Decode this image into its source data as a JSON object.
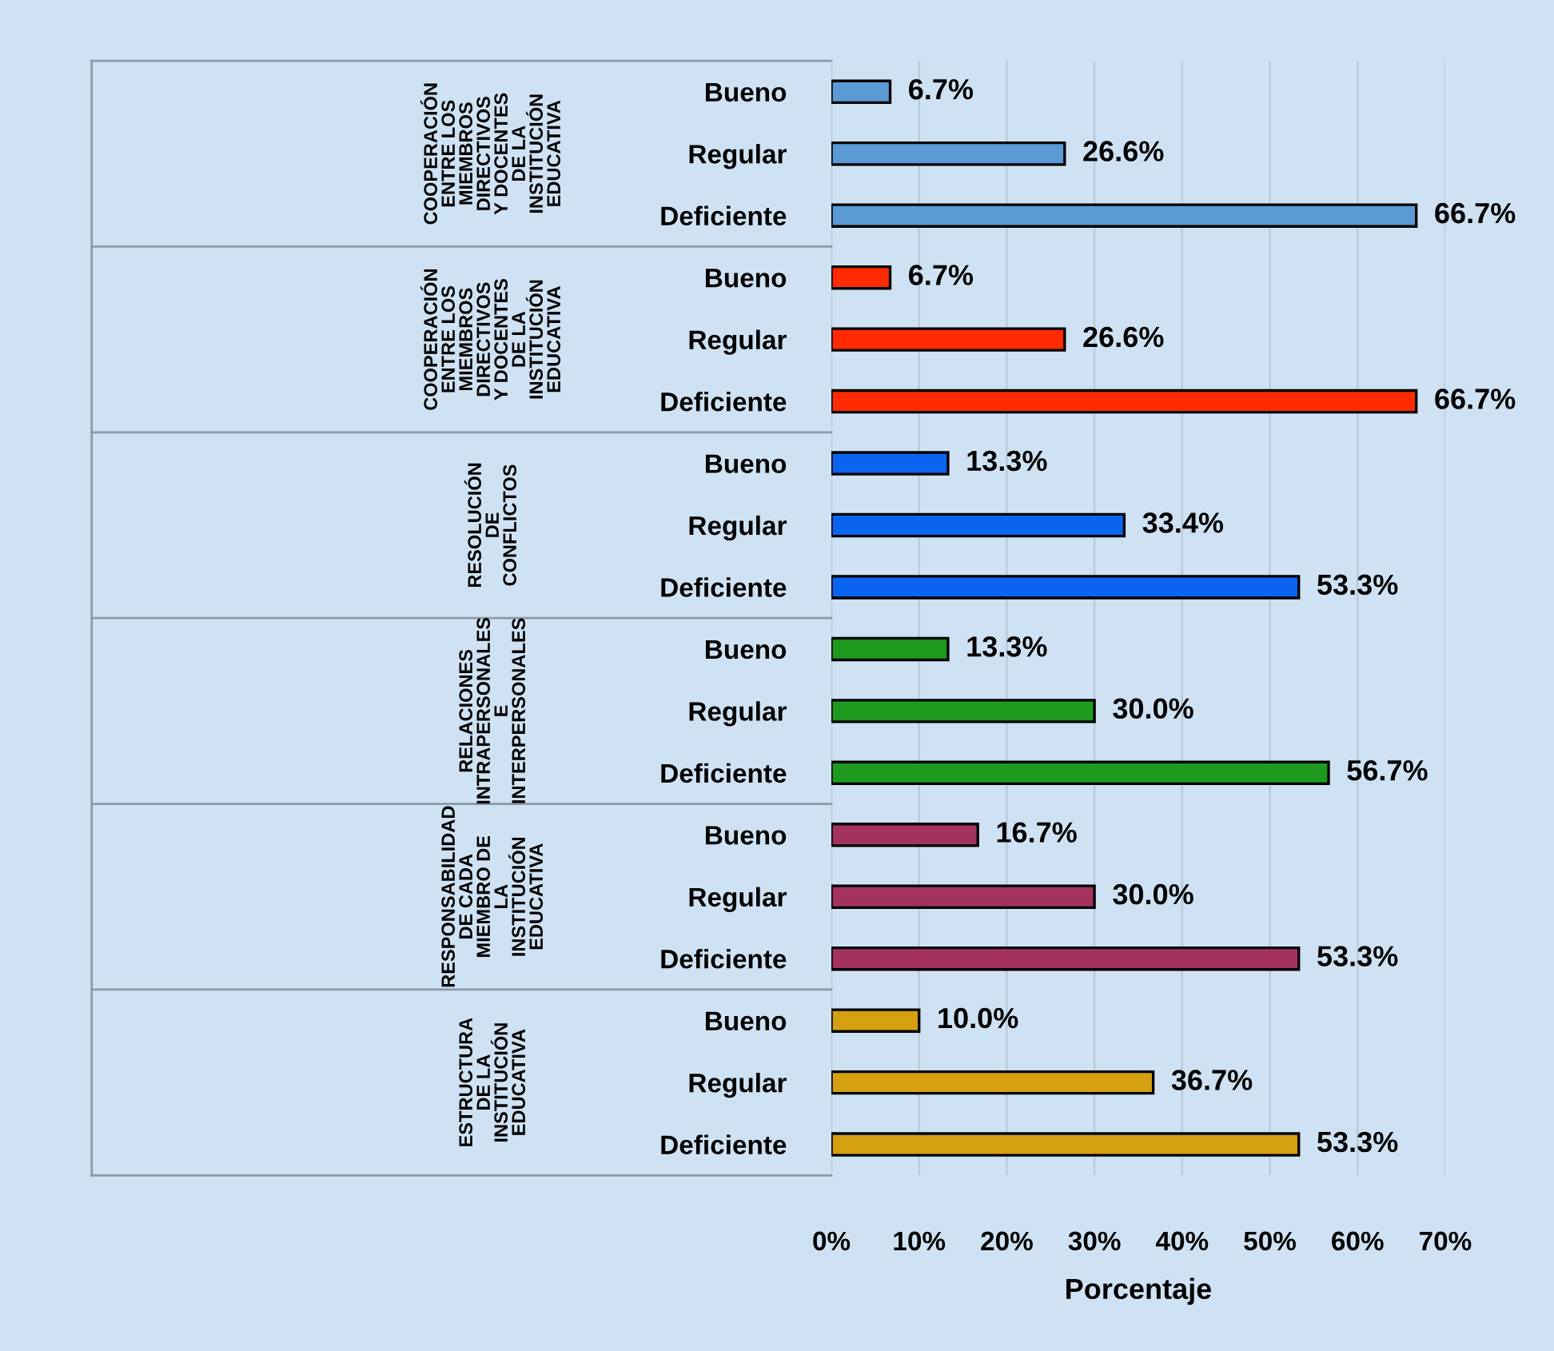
{
  "chart_data": {
    "type": "bar",
    "orientation": "horizontal",
    "xlabel": "Porcentaje",
    "categories": [
      "Bueno",
      "Regular",
      "Deficiente",
      "Bueno",
      "Regular",
      "Deficiente",
      "Bueno",
      "Regular",
      "Deficiente",
      "Bueno",
      "Regular",
      "Deficiente",
      "Bueno",
      "Regular",
      "Deficiente",
      "Bueno",
      "Regular",
      "Deficiente"
    ],
    "values": [
      6.7,
      26.6,
      66.7,
      6.7,
      26.6,
      66.7,
      13.3,
      33.4,
      53.3,
      13.3,
      30.0,
      56.7,
      16.7,
      30.0,
      53.3,
      10.0,
      36.7,
      53.3
    ],
    "value_labels": [
      "6.7%",
      "26.6%",
      "66.7%",
      "6.7%",
      "26.6%",
      "66.7%",
      "13.3%",
      "33.4%",
      "53.3%",
      "13.3%",
      "30.0%",
      "56.7%",
      "16.7%",
      "30.0%",
      "53.3%",
      "10.0%",
      "36.7%",
      "53.3%"
    ],
    "colors": [
      "#5b9bd5",
      "#5b9bd5",
      "#5b9bd5",
      "#ff2a00",
      "#ff2a00",
      "#ff2a00",
      "#0a64f0",
      "#0a64f0",
      "#0a64f0",
      "#1e9a1e",
      "#1e9a1e",
      "#1e9a1e",
      "#a3325e",
      "#a3325e",
      "#a3325e",
      "#d4a010",
      "#d4a010",
      "#d4a010"
    ],
    "annotations": [
      "COOPERACIÓN ENTRE LOS MIEMBROS DIRECTIVOS Y DOCENTES DE LA INSTITUCIÓN EDUCATIVA",
      "COOPERACIÓN ENTRE LOS MIEMBROS DIRECTIVOS Y DOCENTES DE LA INSTITUCIÓN EDUCATIVA",
      "RESOLUCIÓN DE CONFLICTOS",
      "RELACIONES INTRAPERSONALES E INTERPERSONALES",
      "RESPONSABILIDAD DE CADA MIEMBRO DE LA INSTITUCIÓN EDUCATIVA",
      "ESTRUCTURA DE LA INSTITUCIÓN EDUCATIVA"
    ],
    "xlim": [
      0,
      70
    ],
    "xticks": [
      {
        "value": 0,
        "label": "0%"
      },
      {
        "value": 10,
        "label": "10%"
      },
      {
        "value": 20,
        "label": "20%"
      },
      {
        "value": 30,
        "label": "30%"
      },
      {
        "value": 40,
        "label": "40%"
      },
      {
        "value": 50,
        "label": "50%"
      },
      {
        "value": 60,
        "label": "60%"
      },
      {
        "value": 70,
        "label": "70%"
      }
    ],
    "grid": "x"
  }
}
